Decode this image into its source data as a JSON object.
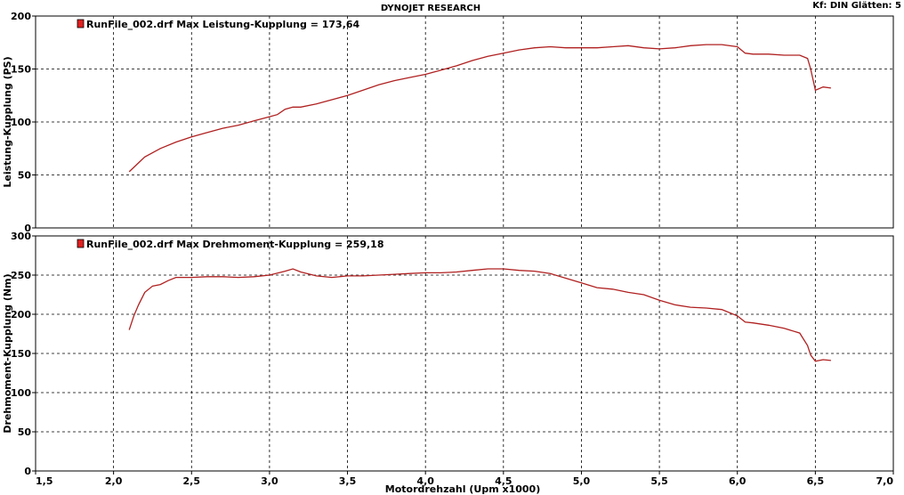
{
  "header": {
    "title": "DYNOJET RESEARCH",
    "right_info": "Kf: DIN  Glätten: 5"
  },
  "colors": {
    "series": "#b02020",
    "legend_swatch": "#e02020"
  },
  "chart_data": [
    {
      "type": "line",
      "legend": "RunFile_002.drf Max Leistung-Kupplung = 173,64",
      "ylabel": "Leistung-Kupplung (PS)",
      "xlim": [
        1.5,
        7.0
      ],
      "ylim": [
        0,
        200
      ],
      "yticks": [
        0,
        50,
        100,
        150,
        200
      ],
      "grid": true,
      "legend_position": "top-left",
      "series": [
        {
          "x": [
            2.1,
            2.15,
            2.2,
            2.3,
            2.4,
            2.5,
            2.6,
            2.7,
            2.8,
            2.9,
            3.0,
            3.05,
            3.1,
            3.15,
            3.2,
            3.3,
            3.4,
            3.5,
            3.6,
            3.7,
            3.8,
            3.9,
            4.0,
            4.1,
            4.2,
            4.3,
            4.4,
            4.5,
            4.6,
            4.7,
            4.8,
            4.9,
            5.0,
            5.1,
            5.2,
            5.3,
            5.4,
            5.5,
            5.6,
            5.7,
            5.8,
            5.9,
            6.0,
            6.05,
            6.1,
            6.2,
            6.3,
            6.4,
            6.45,
            6.47,
            6.5,
            6.55,
            6.6
          ],
          "y": [
            53,
            60,
            67,
            75,
            81,
            86,
            90,
            94,
            97,
            101,
            105,
            107,
            112,
            114,
            114,
            117,
            121,
            125,
            130,
            135,
            139,
            142,
            145,
            149,
            153,
            158,
            162,
            165,
            168,
            170,
            171,
            170,
            170,
            170,
            171,
            172,
            170,
            169,
            170,
            172,
            173,
            173,
            171,
            165,
            164,
            164,
            163,
            163,
            160,
            150,
            130,
            133,
            132
          ]
        }
      ]
    },
    {
      "type": "line",
      "legend": "RunFile_002.drf Max Drehmoment-Kupplung = 259,18",
      "ylabel": "Drehmoment-Kupplung (Nm)",
      "xlabel": "Motordrehzahl (Upm x1000)",
      "xlim": [
        1.5,
        7.0
      ],
      "ylim": [
        0,
        300
      ],
      "xticks": [
        "1,5",
        "2,0",
        "2,5",
        "3,0",
        "3,5",
        "4,0",
        "4,5",
        "5,0",
        "5,5",
        "6,0",
        "6,5",
        "7,0"
      ],
      "yticks": [
        0,
        50,
        100,
        150,
        200,
        250,
        300
      ],
      "grid": true,
      "legend_position": "top-left",
      "series": [
        {
          "x": [
            2.1,
            2.13,
            2.16,
            2.2,
            2.25,
            2.3,
            2.35,
            2.4,
            2.5,
            2.6,
            2.7,
            2.8,
            2.9,
            3.0,
            3.1,
            3.15,
            3.2,
            3.3,
            3.4,
            3.5,
            3.6,
            3.7,
            3.8,
            3.9,
            4.0,
            4.1,
            4.2,
            4.3,
            4.4,
            4.5,
            4.6,
            4.7,
            4.8,
            4.9,
            5.0,
            5.1,
            5.2,
            5.3,
            5.4,
            5.5,
            5.6,
            5.7,
            5.8,
            5.9,
            6.0,
            6.05,
            6.1,
            6.2,
            6.3,
            6.4,
            6.45,
            6.47,
            6.5,
            6.55,
            6.6
          ],
          "y": [
            180,
            198,
            212,
            228,
            236,
            238,
            243,
            247,
            247,
            248,
            248,
            247,
            248,
            250,
            255,
            258,
            254,
            249,
            247,
            249,
            249,
            250,
            251,
            252,
            253,
            253,
            254,
            256,
            258,
            258,
            256,
            255,
            252,
            246,
            240,
            234,
            232,
            228,
            225,
            218,
            212,
            209,
            208,
            206,
            198,
            190,
            189,
            186,
            182,
            176,
            160,
            148,
            140,
            142,
            141
          ]
        }
      ]
    }
  ]
}
